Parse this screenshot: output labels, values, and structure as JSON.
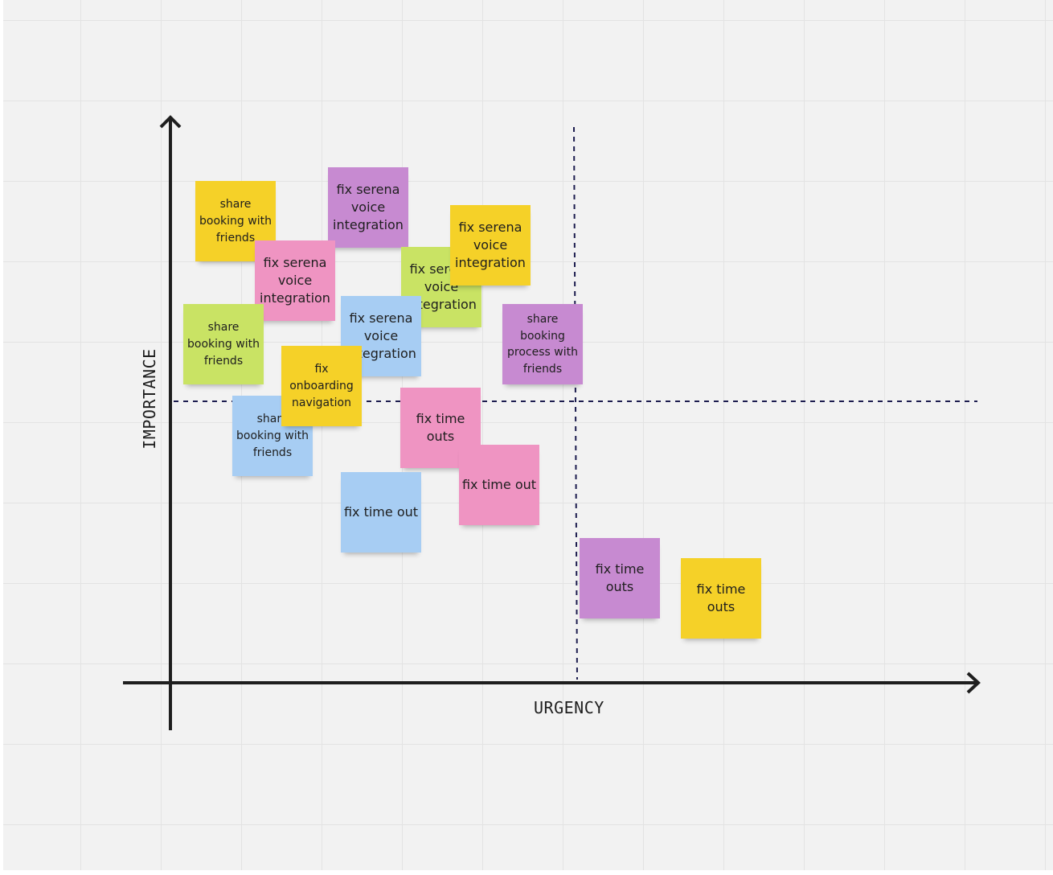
{
  "axes": {
    "x_label": "URGENCY",
    "y_label": "IMPORTANCE"
  },
  "colors": {
    "yellow": "#f5d128",
    "pink": "#ef94c2",
    "purple": "#c78ad1",
    "green": "#c9e364",
    "blue": "#a7cdf3",
    "axis": "#1e1e1e",
    "divider": "#1d1d4f"
  },
  "stickies": [
    {
      "text": "share booking with friends",
      "color": "yellow"
    },
    {
      "text": "fix serena voice integration",
      "color": "purple"
    },
    {
      "text": "fix serena voice integration",
      "color": "pink"
    },
    {
      "text": "fix serena voice integration",
      "color": "green"
    },
    {
      "text": "fix serena voice integration",
      "color": "yellow"
    },
    {
      "text": "share booking with friends",
      "color": "green"
    },
    {
      "text": "fix serena voice integration",
      "color": "blue"
    },
    {
      "text": "share booking process with friends",
      "color": "purple"
    },
    {
      "text": "share booking with friends",
      "color": "blue"
    },
    {
      "text": "fix onboarding navigation",
      "color": "yellow"
    },
    {
      "text": "fix time outs",
      "color": "pink"
    },
    {
      "text": "fix time out",
      "color": "pink"
    },
    {
      "text": "fix time out",
      "color": "blue"
    },
    {
      "text": "fix time outs",
      "color": "purple"
    },
    {
      "text": "fix time outs",
      "color": "yellow"
    }
  ]
}
